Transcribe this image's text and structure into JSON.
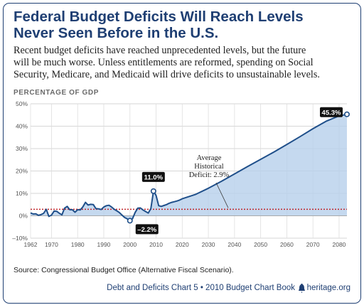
{
  "header": {
    "title": "Federal Budget Deficits Will Reach Levels\nNever Seen Before in the U.S.",
    "subtitle": "Recent budget deficits have reached unprecedented levels, but the future\nwill be much worse. Unless entitlements are reformed, spending on Social\nSecurity, Medicare, and Medicaid will drive deficits to unsustainable levels."
  },
  "footer": {
    "source": "Source: Congressional Budget Office (Alternative Fiscal Scenario).",
    "chart_book": "Debt and Deficits Chart 5 • 2010 Budget Chart Book",
    "site": "heritage.org"
  },
  "colors": {
    "brand": "#1f3f73",
    "line": "#1f4f8a",
    "area": "#b7cfeb",
    "average_line": "#c0272d"
  },
  "chart_data": {
    "type": "area",
    "ylabel": "PERCENTAGE OF GDP",
    "ylim": [
      -10,
      50
    ],
    "xlim": [
      1962,
      2083
    ],
    "yticks": [
      -10,
      0,
      10,
      20,
      30,
      40,
      50
    ],
    "ytick_labels": [
      "–10%",
      "0%",
      "10%",
      "20%",
      "30%",
      "40%",
      "50%"
    ],
    "xticks": [
      1962,
      1970,
      1980,
      1990,
      2000,
      2010,
      2020,
      2030,
      2040,
      2050,
      2060,
      2070,
      2080
    ],
    "grid": true,
    "series": [
      {
        "x": [
          1962,
          1963,
          1964,
          1965,
          1966,
          1967,
          1968,
          1969,
          1970,
          1971,
          1972,
          1973,
          1974,
          1975,
          1976,
          1977,
          1978,
          1979,
          1980,
          1981,
          1982,
          1983,
          1984,
          1985,
          1986,
          1987,
          1988,
          1989,
          1990,
          1991,
          1992,
          1993,
          1994,
          1995,
          1996,
          1997,
          1998,
          1999,
          2000,
          2001,
          2002,
          2003,
          2004,
          2005,
          2006,
          2007,
          2008,
          2009,
          2010,
          2011,
          2012,
          2013,
          2014,
          2015,
          2016,
          2017,
          2018,
          2019,
          2020,
          2025,
          2030,
          2035,
          2040,
          2045,
          2050,
          2055,
          2060,
          2065,
          2070,
          2075,
          2080,
          2083
        ],
        "values": [
          1.3,
          0.8,
          0.9,
          0.2,
          0.5,
          1.1,
          2.9,
          -0.3,
          0.3,
          2.1,
          2.0,
          1.1,
          0.4,
          3.4,
          4.2,
          2.7,
          2.7,
          1.6,
          2.7,
          2.6,
          4.0,
          6.0,
          4.8,
          5.1,
          5.0,
          3.2,
          3.1,
          2.8,
          3.9,
          4.5,
          4.7,
          3.9,
          2.9,
          2.2,
          1.4,
          0.3,
          -0.8,
          -1.4,
          -2.2,
          -1.3,
          1.5,
          3.4,
          3.5,
          2.6,
          1.9,
          1.2,
          3.2,
          11.0,
          9.1,
          4.5,
          4.2,
          4.6,
          5.0,
          5.6,
          6.0,
          6.3,
          6.6,
          7.0,
          7.6,
          9.5,
          12.3,
          15.4,
          18.7,
          22.0,
          25.2,
          28.4,
          31.8,
          35.3,
          38.9,
          42.2,
          44.6,
          45.3
        ]
      }
    ],
    "average": {
      "value": 2.9,
      "label": "Average\nHistorical\nDeficit: 2.9%"
    },
    "callouts": [
      {
        "x": 2000,
        "y": -2.2,
        "label": "–2.2%"
      },
      {
        "x": 2009,
        "y": 11.0,
        "label": "11.0%"
      },
      {
        "x": 2083,
        "y": 45.3,
        "label": "45.3%"
      }
    ]
  }
}
